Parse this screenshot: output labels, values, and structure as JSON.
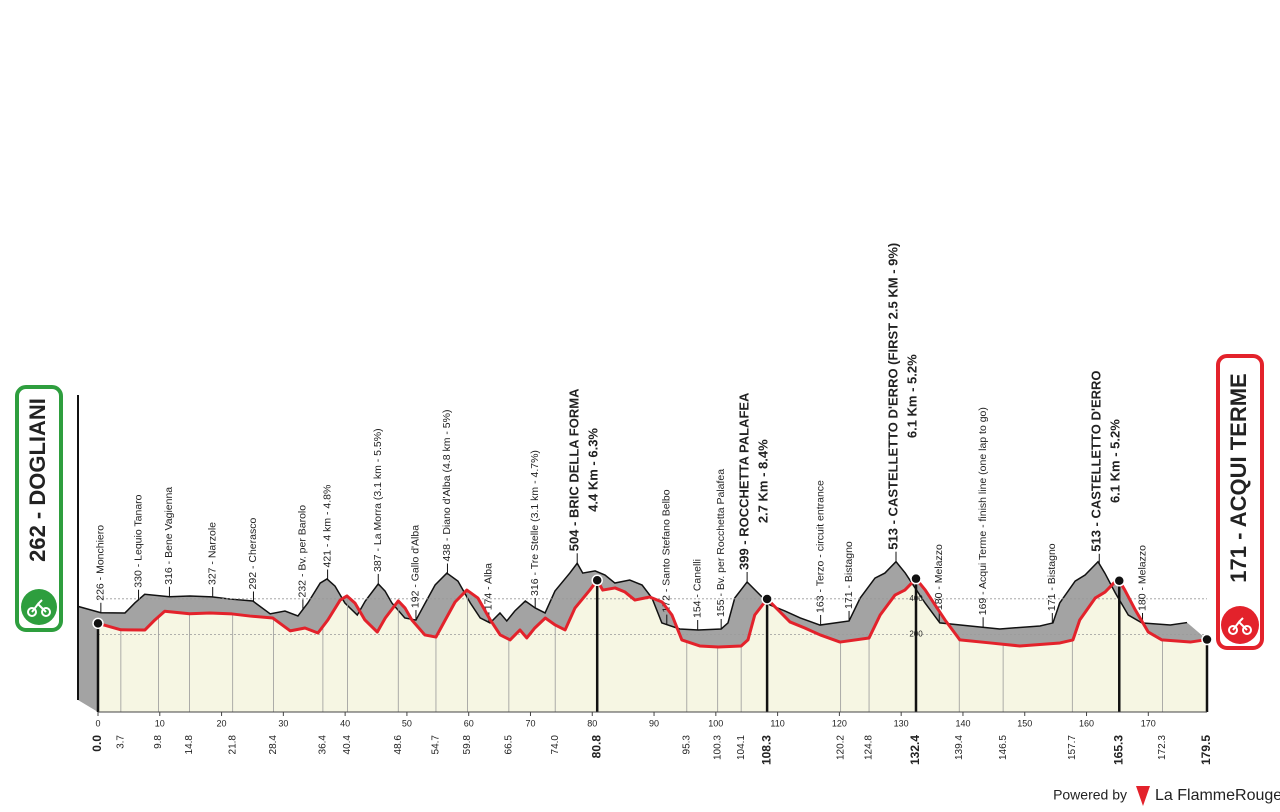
{
  "chart_data": {
    "type": "area",
    "color": "#e3222b",
    "xlim": [
      0,
      179.5
    ],
    "ylim": [
      0,
      700
    ],
    "xticks": [
      0,
      10,
      20,
      30,
      40,
      50,
      60,
      70,
      80,
      90,
      100,
      110,
      120,
      130,
      140,
      150,
      160,
      170
    ],
    "yticks": [
      200,
      400
    ],
    "grid": true,
    "x": [
      0,
      3.7,
      7.6,
      9.2,
      10.8,
      14.8,
      18.1,
      21.7,
      24.6,
      28.3,
      31.1,
      33.5,
      35.6,
      37.2,
      39.2,
      40.3,
      41.6,
      43.2,
      45.2,
      46.5,
      48.6,
      49.7,
      50.8,
      52.9,
      54.7,
      56.2,
      57.8,
      59.7,
      61.5,
      63.5,
      65.1,
      66.7,
      68.3,
      69.4,
      70.7,
      72.4,
      74,
      75.6,
      77.2,
      79.6,
      80.8,
      81.7,
      83.7,
      85.3,
      86.9,
      89.3,
      91.3,
      92.9,
      94.5,
      97.4,
      100.4,
      104.1,
      105.2,
      106.3,
      108.3,
      110.4,
      112,
      114.4,
      116.9,
      120.1,
      124.8,
      126.6,
      129,
      130.6,
      132.4,
      133.9,
      135.5,
      137.1,
      139.5,
      144.4,
      149.2,
      155.7,
      157.8,
      158.9,
      161.4,
      163,
      165.1,
      166.2,
      167.9,
      170,
      172.2,
      176.8,
      179.5
    ],
    "values": [
      262,
      226,
      225,
      281,
      330,
      316,
      320,
      315,
      303,
      292,
      220,
      236,
      208,
      281,
      393,
      416,
      376,
      281,
      213,
      292,
      388,
      348,
      281,
      197,
      185,
      281,
      382,
      449,
      404,
      281,
      197,
      169,
      225,
      180,
      236,
      292,
      253,
      225,
      348,
      449,
      504,
      449,
      461,
      438,
      393,
      410,
      382,
      309,
      169,
      135,
      129,
      135,
      169,
      309,
      399,
      326,
      270,
      236,
      197,
      157,
      180,
      309,
      421,
      449,
      513,
      449,
      365,
      281,
      169,
      152,
      135,
      152,
      169,
      281,
      404,
      438,
      513,
      449,
      337,
      213,
      169,
      157,
      171
    ],
    "start": {
      "label": "262 - DOGLIANI",
      "km": {
        "value": 0,
        "label": "0.0"
      },
      "color": "#2e9e3e"
    },
    "finish": {
      "label": "171 - ACQUI TERME",
      "km": 179.5,
      "color": "#e3222b"
    },
    "waypoints": [
      {
        "label": "226 - Monchiero",
        "km": 3.7
      },
      {
        "label": "330 - Lequio Tanaro",
        "km": 9.8
      },
      {
        "label": "316 - Bene Vagienna",
        "km": 14.8
      },
      {
        "label": "327 - Narzole",
        "km": 21.8
      },
      {
        "label": "292 - Cherasco",
        "km": 28.4
      },
      {
        "label": "232 - Bv. per Barolo",
        "km": 36.4
      },
      {
        "label": "421 - 4 km - 4.8%",
        "km": 40.4
      },
      {
        "label": "387 - La Morra (3.1 km - 5.5%)",
        "km": 48.6
      },
      {
        "label": "192 - Gallo d'Alba",
        "km": 54.7
      },
      {
        "label": "438 - Diano d'Alba (4.8 km - 5%)",
        "km": 59.8
      },
      {
        "label": "174 - Alba",
        "km": 66.5
      },
      {
        "label": "316 - Tre Stelle (3.1 km - 4.7%)",
        "km": {
          "value": 74,
          "label": "74.0"
        }
      },
      {
        "label": "504 - BRIC DELLA FORMA",
        "sublabel": "4.4 Km - 6.3%",
        "km": 80.8,
        "summit": true
      },
      {
        "label": "172 - Santo Stefano Belbo",
        "km": 95.3
      },
      {
        "label": "154 - Canelli",
        "km": 100.3
      },
      {
        "label": "155 - Bv. per Rocchetta Palafea",
        "km": 104.1
      },
      {
        "label": "399 - ROCCHETTA PALAFEA",
        "sublabel": "2.7 Km - 8.4%",
        "km": 108.3,
        "summit": true
      },
      {
        "label": "163 - Terzo - circuit entrance",
        "km": 120.2
      },
      {
        "label": "171 - Bistagno",
        "km": 124.8
      },
      {
        "label": "513 - CASTELLETTO D'ERRO (FIRST 2.5 KM - 9%)",
        "sublabel": "6.1 Km - 5.2%",
        "km": 132.4,
        "summit": true
      },
      {
        "label": "180 - Melazzo",
        "km": 139.4
      },
      {
        "label": "169 - Acqui Terme - finish line (one lap to go)",
        "km": 146.5
      },
      {
        "label": "171 - Bistagno",
        "km": 157.7
      },
      {
        "label": "513 - CASTELLETTO D'ERRO",
        "sublabel": "6.1 Km - 5.2%",
        "km": 165.3,
        "summit": true
      },
      {
        "label": "180 - Melazzo",
        "km": 172.3
      }
    ]
  },
  "footer": {
    "powered": "Powered by",
    "brand": "La FlammeRouge"
  }
}
